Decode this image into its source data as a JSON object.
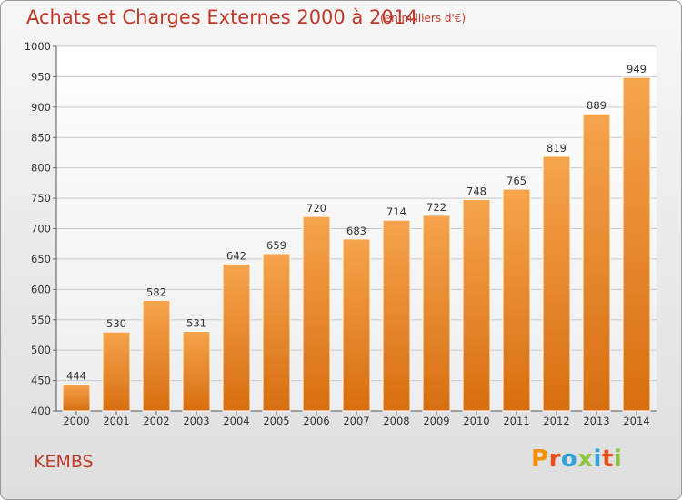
{
  "header": {
    "title": "Achats et Charges Externes 2000 à 2014",
    "subtitle": "(en milliers d'€)"
  },
  "footer": {
    "town": "KEMBS",
    "logo_text": "Proxiti"
  },
  "colors": {
    "title": "#c0392b",
    "bar_top": "#f6a44c",
    "bar_bottom": "#d86e10",
    "grid": "#c8c8c8",
    "logo_letters": [
      "#f39200",
      "#e94e1b",
      "#2fa3dc",
      "#8cc63f",
      "#2fa3dc",
      "#e94e1b",
      "#8cc63f"
    ]
  },
  "chart_data": {
    "type": "bar",
    "categories": [
      "2000",
      "2001",
      "2002",
      "2003",
      "2004",
      "2005",
      "2006",
      "2007",
      "2008",
      "2009",
      "2010",
      "2011",
      "2012",
      "2013",
      "2014"
    ],
    "values": [
      444,
      530,
      582,
      531,
      642,
      659,
      720,
      683,
      714,
      722,
      748,
      765,
      819,
      889,
      949
    ],
    "yticks": [
      400,
      450,
      500,
      550,
      600,
      650,
      700,
      750,
      800,
      850,
      900,
      950,
      1000
    ],
    "ylim": [
      400,
      1000
    ],
    "grid": true,
    "data_labels": true
  }
}
